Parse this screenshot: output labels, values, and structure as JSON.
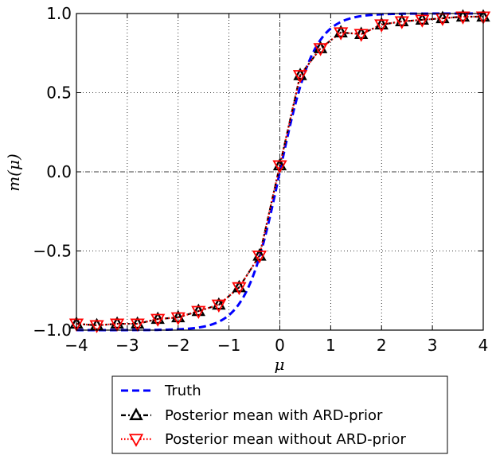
{
  "chart_data": {
    "type": "line",
    "xlabel": "μ",
    "ylabel": "m(μ)",
    "xlim": [
      -4,
      4
    ],
    "ylim": [
      -1.0,
      1.0
    ],
    "grid": true,
    "legend_placement": "bottom",
    "xticks": [
      "−4",
      "−3",
      "−2",
      "−1",
      "0",
      "1",
      "2",
      "3",
      "4"
    ],
    "yticks": [
      "−1.0",
      "−0.5",
      "0.0",
      "0.5",
      "1.0"
    ],
    "series": [
      {
        "name": "Truth",
        "color": "#0000ff",
        "style": "dashed",
        "function": "tanh(1.5*mu)"
      },
      {
        "name": "Posterior mean with ARD-prior",
        "color": "#000000",
        "style": "dashdot",
        "marker": "triangle-up",
        "x": [
          -4.0,
          -3.6,
          -3.2,
          -2.8,
          -2.4,
          -2.0,
          -1.6,
          -1.2,
          -0.8,
          -0.4,
          0.0,
          0.4,
          0.8,
          1.2,
          1.6,
          2.0,
          2.4,
          2.8,
          3.2,
          3.6,
          4.0
        ],
        "values": [
          -0.96,
          -0.97,
          -0.96,
          -0.96,
          -0.93,
          -0.92,
          -0.88,
          -0.84,
          -0.73,
          -0.53,
          0.04,
          0.61,
          0.78,
          0.88,
          0.87,
          0.93,
          0.95,
          0.96,
          0.97,
          0.98,
          0.98
        ]
      },
      {
        "name": "Posterior mean without ARD-prior",
        "color": "#ff0000",
        "style": "dotted",
        "marker": "triangle-down",
        "x": [
          -4.0,
          -3.6,
          -3.2,
          -2.8,
          -2.4,
          -2.0,
          -1.6,
          -1.2,
          -0.8,
          -0.4,
          0.0,
          0.4,
          0.8,
          1.2,
          1.6,
          2.0,
          2.4,
          2.8,
          3.2,
          3.6,
          4.0
        ],
        "values": [
          -0.96,
          -0.97,
          -0.96,
          -0.96,
          -0.93,
          -0.92,
          -0.88,
          -0.84,
          -0.73,
          -0.53,
          0.04,
          0.61,
          0.78,
          0.88,
          0.87,
          0.93,
          0.95,
          0.96,
          0.97,
          0.98,
          0.98
        ]
      }
    ]
  }
}
